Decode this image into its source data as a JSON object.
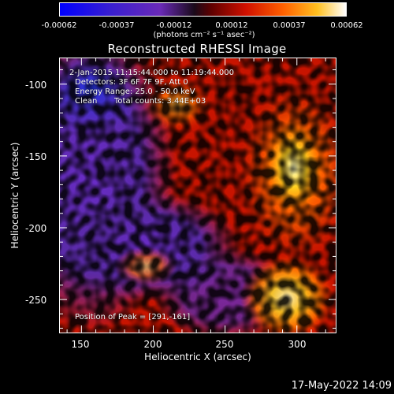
{
  "colorbar": {
    "ticks": [
      "-0.00062",
      "-0.00037",
      "-0.00012",
      "0.00012",
      "0.00037",
      "0.00062"
    ],
    "unit": "(photons cm⁻² s⁻¹ asec⁻²)"
  },
  "chart_data": {
    "type": "heatmap",
    "title": "Reconstructed RHESSI Image",
    "xlabel": "Heliocentric X (arcsec)",
    "ylabel": "Heliocentric Y (arcsec)",
    "xlim": [
      135,
      327
    ],
    "ylim": [
      -273,
      -82
    ],
    "xticks": [
      150,
      200,
      250,
      300
    ],
    "yticks": [
      -100,
      -150,
      -200,
      -250
    ],
    "colorbar_range": [
      -0.00062,
      0.00062
    ],
    "colormap": "rhessi-std-gamma",
    "annotations": [
      "2-Jan-2015 11:15:44.000 to 11:19:44.000",
      "Detectors: 3F 6F 7F 9F, Att 0",
      "Energy Range: 25.0 - 50.0 keV",
      "Clean",
      "Total counts: 3.44E+03"
    ],
    "peak_label": "Position of Peak = [291,-161]",
    "peak_position": [
      291,
      -161
    ]
  },
  "footer": {
    "timestamp": "17-May-2022 14:09"
  }
}
